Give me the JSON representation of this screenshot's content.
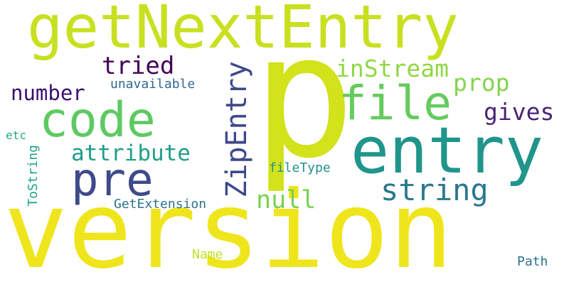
{
  "background": "#ffffff",
  "words": [
    {
      "text": "p",
      "color": "#d2e21b"
    },
    {
      "text": "version",
      "color": "#efe51c"
    },
    {
      "text": "getNextEntry",
      "color": "#c8e020"
    },
    {
      "text": "entry",
      "color": "#1f958b"
    },
    {
      "text": "code",
      "color": "#5ec962"
    },
    {
      "text": "file",
      "color": "#65cb5e"
    },
    {
      "text": "pre",
      "color": "#3e4a89"
    },
    {
      "text": "ZipEntry",
      "color": "#3e4989"
    },
    {
      "text": "string",
      "color": "#2a788e"
    },
    {
      "text": "inStream",
      "color": "#90d743"
    },
    {
      "text": "tried",
      "color": "#440154"
    },
    {
      "text": "number",
      "color": "#3b0f70"
    },
    {
      "text": "attribute",
      "color": "#1f9e89"
    },
    {
      "text": "prop",
      "color": "#84d44b"
    },
    {
      "text": "gives",
      "color": "#482475"
    },
    {
      "text": "null",
      "color": "#7ad151"
    },
    {
      "text": "unavailable",
      "color": "#31688e"
    },
    {
      "text": "fileType",
      "color": "#21918c"
    },
    {
      "text": "GetExtension",
      "color": "#2c728e"
    },
    {
      "text": "etc",
      "color": "#26a784"
    },
    {
      "text": "ToString",
      "color": "#20a386"
    },
    {
      "text": "Name",
      "color": "#c2df23"
    },
    {
      "text": "Path",
      "color": "#2c718e"
    }
  ]
}
